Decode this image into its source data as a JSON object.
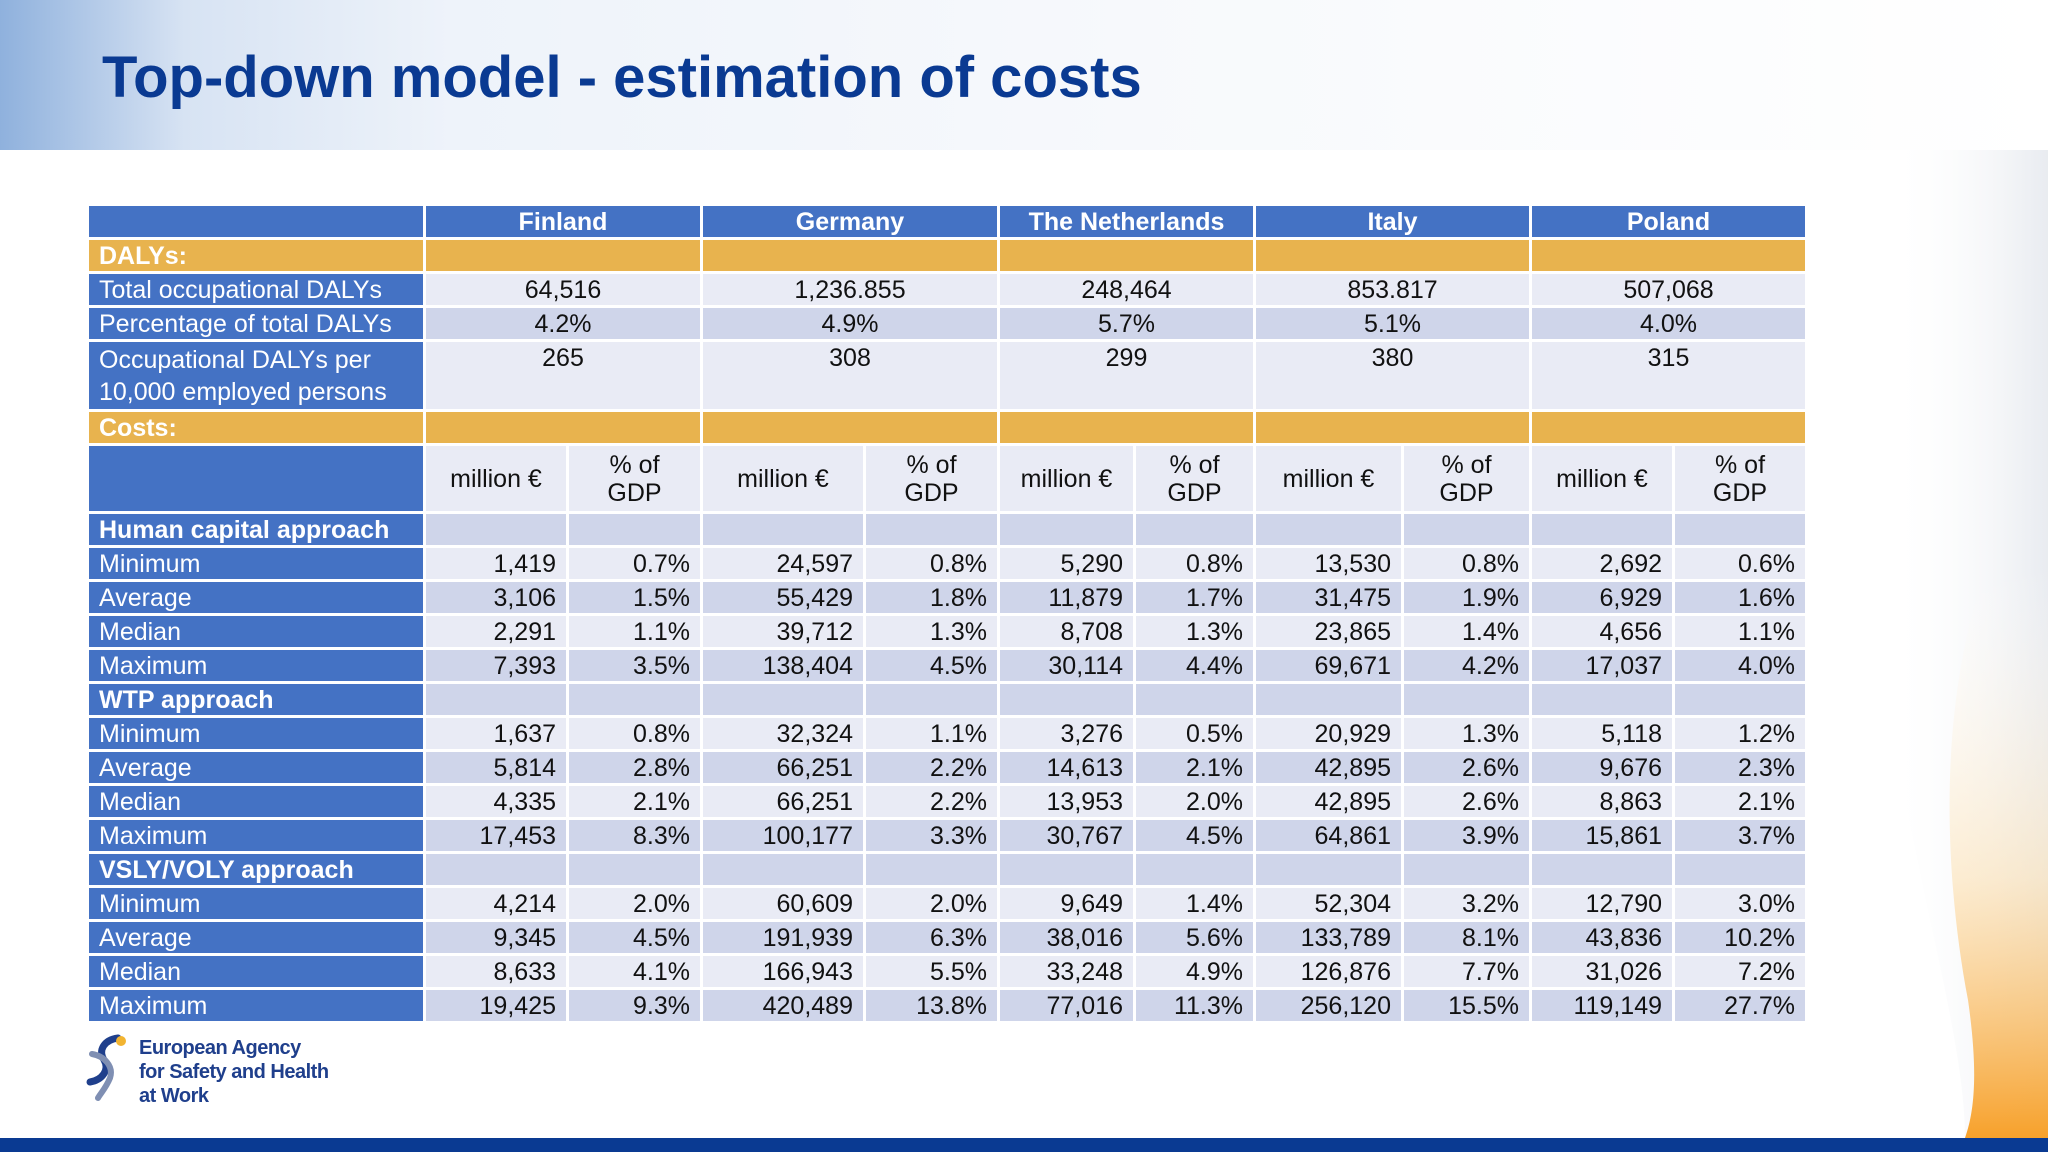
{
  "slide": {
    "title": "Top-down model - estimation of costs"
  },
  "colors": {
    "title": "#0a3a92",
    "header_blue": "#4472c4",
    "section_gold": "#e8b34e",
    "row_light": "#e9ebf5",
    "row_dark": "#cfd5ea",
    "bottom_bar": "#0a3a92",
    "accent_orange": "#f7a12b"
  },
  "table": {
    "countries": [
      "Finland",
      "Germany",
      "The Netherlands",
      "Italy",
      "Poland"
    ],
    "dalys_section": "DALYs:",
    "dalys_rows": [
      {
        "label": "Total occupational DALYs",
        "values": [
          "64,516",
          "1,236.855",
          "248,464",
          "853.817",
          "507,068"
        ]
      },
      {
        "label": "Percentage of total DALYs",
        "values": [
          "4.2%",
          "4.9%",
          "5.7%",
          "5.1%",
          "4.0%"
        ]
      },
      {
        "label_line1": "Occupational DALYs per",
        "label_line2": "10,000 employed persons",
        "values": [
          "265",
          "308",
          "299",
          "380",
          "315"
        ]
      }
    ],
    "costs_section": "Costs:",
    "unit_million_line1": "million €",
    "unit_gdp_line1": "% of",
    "unit_gdp_line2": "GDP",
    "approaches": [
      {
        "name": "Human capital approach",
        "rows": [
          {
            "label": "Minimum",
            "values": [
              "1,419",
              "0.7%",
              "24,597",
              "0.8%",
              "5,290",
              "0.8%",
              "13,530",
              "0.8%",
              "2,692",
              "0.6%"
            ]
          },
          {
            "label": "Average",
            "values": [
              "3,106",
              "1.5%",
              "55,429",
              "1.8%",
              "11,879",
              "1.7%",
              "31,475",
              "1.9%",
              "6,929",
              "1.6%"
            ]
          },
          {
            "label": "Median",
            "values": [
              "2,291",
              "1.1%",
              "39,712",
              "1.3%",
              "8,708",
              "1.3%",
              "23,865",
              "1.4%",
              "4,656",
              "1.1%"
            ]
          },
          {
            "label": "Maximum",
            "values": [
              "7,393",
              "3.5%",
              "138,404",
              "4.5%",
              "30,114",
              "4.4%",
              "69,671",
              "4.2%",
              "17,037",
              "4.0%"
            ]
          }
        ]
      },
      {
        "name": "WTP approach",
        "rows": [
          {
            "label": "Minimum",
            "values": [
              "1,637",
              "0.8%",
              "32,324",
              "1.1%",
              "3,276",
              "0.5%",
              "20,929",
              "1.3%",
              "5,118",
              "1.2%"
            ]
          },
          {
            "label": "Average",
            "values": [
              "5,814",
              "2.8%",
              "66,251",
              "2.2%",
              "14,613",
              "2.1%",
              "42,895",
              "2.6%",
              "9,676",
              "2.3%"
            ]
          },
          {
            "label": "Median",
            "values": [
              "4,335",
              "2.1%",
              "66,251",
              "2.2%",
              "13,953",
              "2.0%",
              "42,895",
              "2.6%",
              "8,863",
              "2.1%"
            ]
          },
          {
            "label": "Maximum",
            "values": [
              "17,453",
              "8.3%",
              "100,177",
              "3.3%",
              "30,767",
              "4.5%",
              "64,861",
              "3.9%",
              "15,861",
              "3.7%"
            ]
          }
        ]
      },
      {
        "name": "VSLY/VOLY approach",
        "rows": [
          {
            "label": "Minimum",
            "values": [
              "4,214",
              "2.0%",
              "60,609",
              "2.0%",
              "9,649",
              "1.4%",
              "52,304",
              "3.2%",
              "12,790",
              "3.0%"
            ]
          },
          {
            "label": "Average",
            "values": [
              "9,345",
              "4.5%",
              "191,939",
              "6.3%",
              "38,016",
              "5.6%",
              "133,789",
              "8.1%",
              "43,836",
              "10.2%"
            ]
          },
          {
            "label": "Median",
            "values": [
              "8,633",
              "4.1%",
              "166,943",
              "5.5%",
              "33,248",
              "4.9%",
              "126,876",
              "7.7%",
              "31,026",
              "7.2%"
            ]
          },
          {
            "label": "Maximum",
            "values": [
              "19,425",
              "9.3%",
              "420,489",
              "13.8%",
              "77,016",
              "11.3%",
              "256,120",
              "15.5%",
              "119,149",
              "27.7%"
            ]
          }
        ]
      }
    ]
  },
  "logo": {
    "icon": "eu-osha-logo-icon",
    "line1": "European Agency",
    "line2": "for Safety and Health",
    "line3": "at Work"
  }
}
